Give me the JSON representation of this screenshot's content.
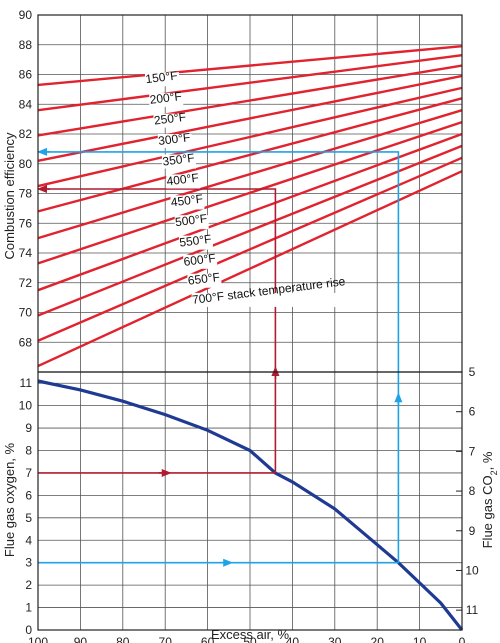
{
  "chart_data": [
    {
      "type": "line",
      "ylabel": "Combustion efficiency",
      "ylim": [
        66,
        90
      ],
      "yticks": [
        68,
        70,
        72,
        74,
        76,
        78,
        80,
        82,
        84,
        86,
        88,
        90
      ],
      "xlim": [
        100,
        0
      ],
      "grid": true,
      "series": [
        {
          "name": "150°F",
          "x": [
            100,
            0
          ],
          "y": [
            85.3,
            87.9
          ]
        },
        {
          "name": "200°F",
          "x": [
            100,
            0
          ],
          "y": [
            83.6,
            87.3
          ]
        },
        {
          "name": "250°F",
          "x": [
            100,
            0
          ],
          "y": [
            81.9,
            86.6
          ]
        },
        {
          "name": "300°F",
          "x": [
            100,
            0
          ],
          "y": [
            80.2,
            85.9
          ]
        },
        {
          "name": "350°F",
          "x": [
            100,
            0
          ],
          "y": [
            78.5,
            85.1
          ]
        },
        {
          "name": "400°F",
          "x": [
            100,
            0
          ],
          "y": [
            76.8,
            84.4
          ]
        },
        {
          "name": "450°F",
          "x": [
            100,
            0
          ],
          "y": [
            75.0,
            83.6
          ]
        },
        {
          "name": "500°F",
          "x": [
            100,
            0
          ],
          "y": [
            73.3,
            82.8
          ]
        },
        {
          "name": "550°F",
          "x": [
            100,
            0
          ],
          "y": [
            71.5,
            82.0
          ]
        },
        {
          "name": "600°F",
          "x": [
            100,
            0
          ],
          "y": [
            69.8,
            81.2
          ]
        },
        {
          "name": "650°F",
          "x": [
            100,
            0
          ],
          "y": [
            68.1,
            80.4
          ]
        },
        {
          "name": "700°F stack temperature rise",
          "x": [
            100,
            0
          ],
          "y": [
            66.4,
            79.5
          ]
        }
      ],
      "annotations": [
        {
          "type": "arrow",
          "color": "#b01c2e",
          "path": [
            [
              44,
              7
            ],
            [
              44,
              78.3
            ],
            [
              100,
              78.3
            ]
          ]
        },
        {
          "type": "arrow",
          "color": "#1ea3e6",
          "path": [
            [
              15,
              3
            ],
            [
              15,
              80.8
            ],
            [
              100,
              80.8
            ]
          ]
        }
      ]
    },
    {
      "type": "line",
      "xlabel": "Excess air, %",
      "ylabel": "Flue gas oxygen, %",
      "y2label": "Flue gas CO2, %",
      "xlim": [
        100,
        0
      ],
      "xticks": [
        100,
        90,
        80,
        70,
        60,
        50,
        40,
        30,
        20,
        10,
        0
      ],
      "ylim": [
        0,
        11.5
      ],
      "yticks": [
        0,
        1,
        2,
        3,
        4,
        5,
        6,
        7,
        8,
        9,
        10,
        11
      ],
      "y2ticks": [
        5,
        6,
        7,
        8,
        9,
        10,
        11
      ],
      "grid": true,
      "series": [
        {
          "x": [
            100,
            90,
            80,
            70,
            60,
            50,
            44,
            40,
            30,
            20,
            15,
            10,
            5,
            0
          ],
          "y": [
            11.1,
            10.7,
            10.2,
            9.6,
            8.9,
            8.0,
            7.0,
            6.6,
            5.4,
            3.8,
            3.0,
            2.1,
            1.2,
            0
          ]
        }
      ],
      "annotations": [
        {
          "type": "arrow",
          "color": "#b01c2e",
          "path": [
            [
              100,
              7
            ],
            [
              44,
              7
            ]
          ]
        },
        {
          "type": "arrow",
          "color": "#1ea3e6",
          "path": [
            [
              100,
              3
            ],
            [
              15,
              3
            ]
          ]
        }
      ]
    }
  ]
}
